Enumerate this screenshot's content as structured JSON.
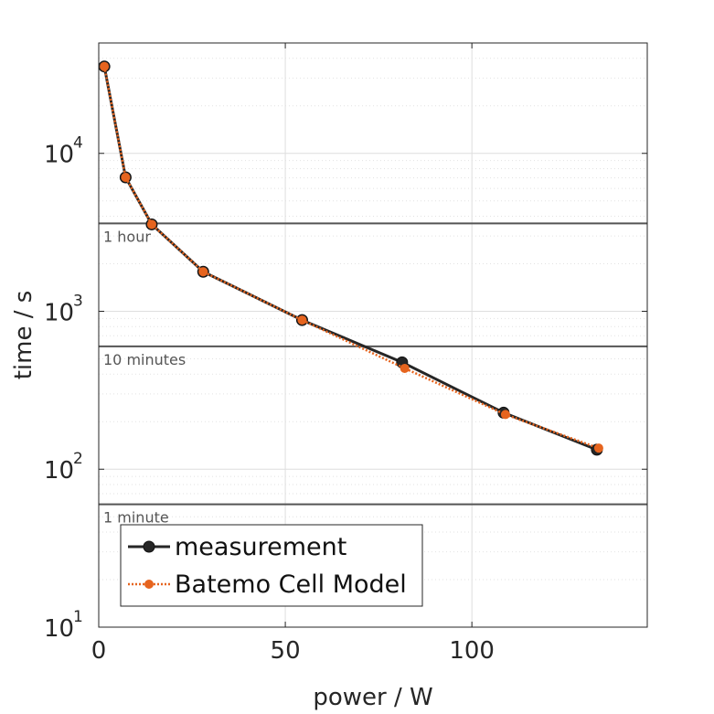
{
  "chart_data": {
    "type": "line",
    "title": "",
    "xlabel": "power / W",
    "ylabel": "time / s",
    "xlim": [
      0,
      147
    ],
    "ylim": [
      10,
      50000
    ],
    "yscale": "log",
    "xticks": [
      0,
      50,
      100
    ],
    "xtick_labels": [
      "0",
      "50",
      "100"
    ],
    "yticks": [
      10,
      100,
      1000,
      10000
    ],
    "ytick_labels": [
      {
        "base": "10",
        "exp": "1"
      },
      {
        "base": "10",
        "exp": "2"
      },
      {
        "base": "10",
        "exp": "3"
      },
      {
        "base": "10",
        "exp": "4"
      }
    ],
    "grid": true,
    "legend_position": "bottom-left",
    "reference_lines": [
      {
        "y": 3600,
        "label": "1 hour",
        "color": "#555555"
      },
      {
        "y": 600,
        "label": "10 minutes",
        "color": "#555555"
      },
      {
        "y": 60,
        "label": "1 minute",
        "color": "#555555"
      }
    ],
    "series": [
      {
        "name": "measurement",
        "color": "#262626",
        "style": "solid",
        "x": [
          1.5,
          7.2,
          14.2,
          28,
          54.5,
          81.3,
          108.5,
          133.5
        ],
        "y": [
          35500,
          7050,
          3550,
          1780,
          880,
          475,
          228,
          133
        ]
      },
      {
        "name": "Batemo Cell Model",
        "color": "#e6641e",
        "style": "dotted",
        "x": [
          1.5,
          7.2,
          14.2,
          28,
          54.5,
          82,
          109,
          134
        ],
        "y": [
          35500,
          7050,
          3550,
          1780,
          880,
          435,
          222,
          136
        ]
      }
    ]
  }
}
